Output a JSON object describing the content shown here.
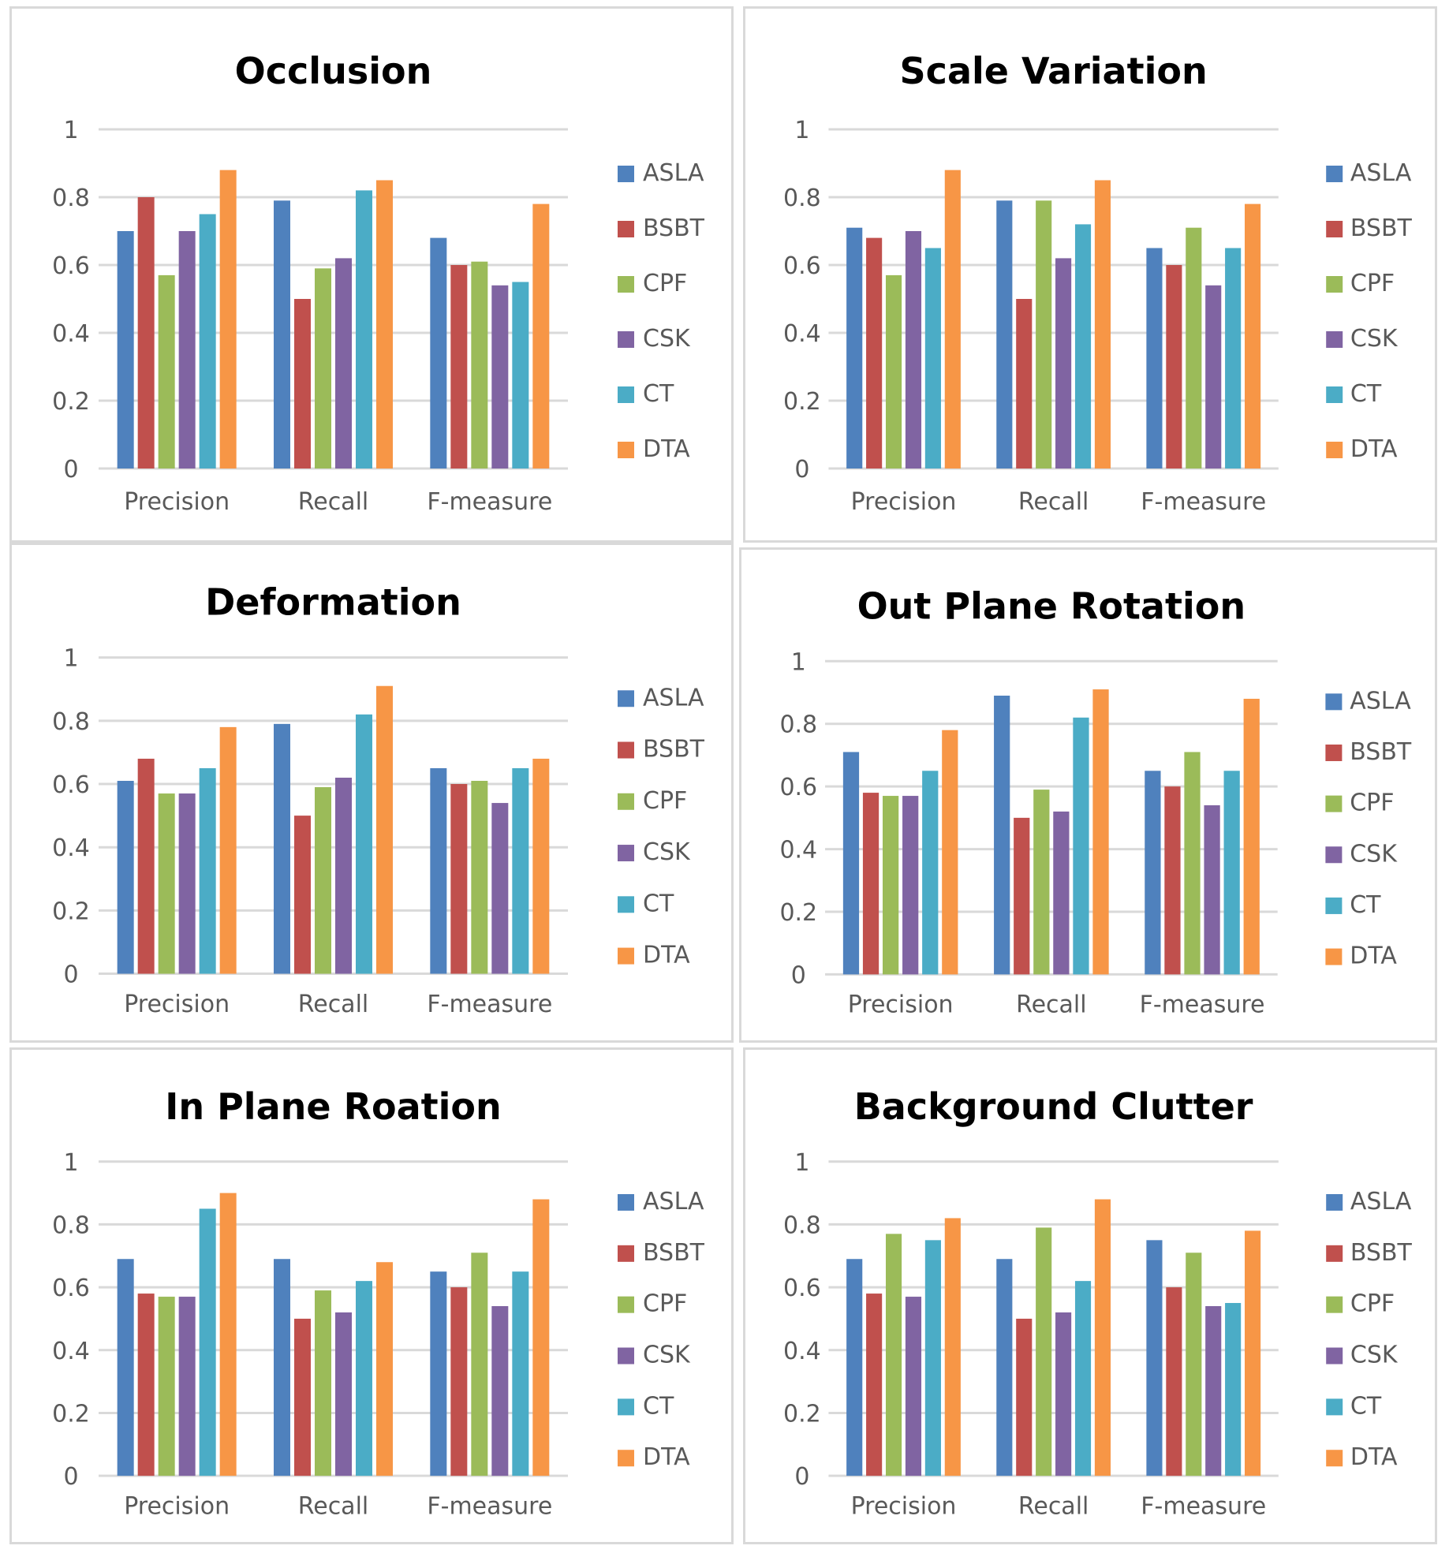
{
  "chart_data": [
    {
      "type": "bar",
      "title": "Occlusion",
      "categories": [
        "Precision",
        "Recall",
        "F-measure"
      ],
      "ylim": [
        0,
        1
      ],
      "yticks": [
        "0",
        "0.2",
        "0.4",
        "0.6",
        "0.8",
        "1"
      ],
      "grid": true,
      "legend": "right",
      "series": [
        {
          "name": "ASLA",
          "color": "#4f81bd",
          "values": [
            0.7,
            0.79,
            0.68
          ]
        },
        {
          "name": "BSBT",
          "color": "#c0504d",
          "values": [
            0.8,
            0.5,
            0.6
          ]
        },
        {
          "name": "CPF",
          "color": "#9bbb59",
          "values": [
            0.57,
            0.59,
            0.61
          ]
        },
        {
          "name": "CSK",
          "color": "#8064a2",
          "values": [
            0.7,
            0.62,
            0.54
          ]
        },
        {
          "name": "CT",
          "color": "#4bacc6",
          "values": [
            0.75,
            0.82,
            0.55
          ]
        },
        {
          "name": "DTA",
          "color": "#f79646",
          "values": [
            0.88,
            0.85,
            0.78
          ]
        }
      ]
    },
    {
      "type": "bar",
      "title": "Scale Variation",
      "categories": [
        "Precision",
        "Recall",
        "F-measure"
      ],
      "ylim": [
        0,
        1
      ],
      "yticks": [
        "0",
        "0.2",
        "0.4",
        "0.6",
        "0.8",
        "1"
      ],
      "grid": true,
      "legend": "right",
      "series": [
        {
          "name": "ASLA",
          "color": "#4f81bd",
          "values": [
            0.71,
            0.79,
            0.65
          ]
        },
        {
          "name": "BSBT",
          "color": "#c0504d",
          "values": [
            0.68,
            0.5,
            0.6
          ]
        },
        {
          "name": "CPF",
          "color": "#9bbb59",
          "values": [
            0.57,
            0.79,
            0.71
          ]
        },
        {
          "name": "CSK",
          "color": "#8064a2",
          "values": [
            0.7,
            0.62,
            0.54
          ]
        },
        {
          "name": "CT",
          "color": "#4bacc6",
          "values": [
            0.65,
            0.72,
            0.65
          ]
        },
        {
          "name": "DTA",
          "color": "#f79646",
          "values": [
            0.88,
            0.85,
            0.78
          ]
        }
      ]
    },
    {
      "type": "bar",
      "title": "Deformation",
      "categories": [
        "Precision",
        "Recall",
        "F-measure"
      ],
      "ylim": [
        0,
        1
      ],
      "yticks": [
        "0",
        "0.2",
        "0.4",
        "0.6",
        "0.8",
        "1"
      ],
      "grid": true,
      "legend": "right",
      "series": [
        {
          "name": "ASLA",
          "color": "#4f81bd",
          "values": [
            0.61,
            0.79,
            0.65
          ]
        },
        {
          "name": "BSBT",
          "color": "#c0504d",
          "values": [
            0.68,
            0.5,
            0.6
          ]
        },
        {
          "name": "CPF",
          "color": "#9bbb59",
          "values": [
            0.57,
            0.59,
            0.61
          ]
        },
        {
          "name": "CSK",
          "color": "#8064a2",
          "values": [
            0.57,
            0.62,
            0.54
          ]
        },
        {
          "name": "CT",
          "color": "#4bacc6",
          "values": [
            0.65,
            0.82,
            0.65
          ]
        },
        {
          "name": "DTA",
          "color": "#f79646",
          "values": [
            0.78,
            0.91,
            0.68
          ]
        }
      ]
    },
    {
      "type": "bar",
      "title": "Out Plane Rotation",
      "categories": [
        "Precision",
        "Recall",
        "F-measure"
      ],
      "ylim": [
        0,
        1
      ],
      "yticks": [
        "0",
        "0.2",
        "0.4",
        "0.6",
        "0.8",
        "1"
      ],
      "grid": true,
      "legend": "right",
      "series": [
        {
          "name": "ASLA",
          "color": "#4f81bd",
          "values": [
            0.71,
            0.89,
            0.65
          ]
        },
        {
          "name": "BSBT",
          "color": "#c0504d",
          "values": [
            0.58,
            0.5,
            0.6
          ]
        },
        {
          "name": "CPF",
          "color": "#9bbb59",
          "values": [
            0.57,
            0.59,
            0.71
          ]
        },
        {
          "name": "CSK",
          "color": "#8064a2",
          "values": [
            0.57,
            0.52,
            0.54
          ]
        },
        {
          "name": "CT",
          "color": "#4bacc6",
          "values": [
            0.65,
            0.82,
            0.65
          ]
        },
        {
          "name": "DTA",
          "color": "#f79646",
          "values": [
            0.78,
            0.91,
            0.88
          ]
        }
      ]
    },
    {
      "type": "bar",
      "title": "In Plane Roation",
      "categories": [
        "Precision",
        "Recall",
        "F-measure"
      ],
      "ylim": [
        0,
        1
      ],
      "yticks": [
        "0",
        "0.2",
        "0.4",
        "0.6",
        "0.8",
        "1"
      ],
      "grid": true,
      "legend": "right",
      "series": [
        {
          "name": "ASLA",
          "color": "#4f81bd",
          "values": [
            0.69,
            0.69,
            0.65
          ]
        },
        {
          "name": "BSBT",
          "color": "#c0504d",
          "values": [
            0.58,
            0.5,
            0.6
          ]
        },
        {
          "name": "CPF",
          "color": "#9bbb59",
          "values": [
            0.57,
            0.59,
            0.71
          ]
        },
        {
          "name": "CSK",
          "color": "#8064a2",
          "values": [
            0.57,
            0.52,
            0.54
          ]
        },
        {
          "name": "CT",
          "color": "#4bacc6",
          "values": [
            0.85,
            0.62,
            0.65
          ]
        },
        {
          "name": "DTA",
          "color": "#f79646",
          "values": [
            0.9,
            0.68,
            0.88
          ]
        }
      ]
    },
    {
      "type": "bar",
      "title": "Background Clutter",
      "categories": [
        "Precision",
        "Recall",
        "F-measure"
      ],
      "ylim": [
        0,
        1
      ],
      "yticks": [
        "0",
        "0.2",
        "0.4",
        "0.6",
        "0.8",
        "1"
      ],
      "grid": true,
      "legend": "right",
      "series": [
        {
          "name": "ASLA",
          "color": "#4f81bd",
          "values": [
            0.69,
            0.69,
            0.75
          ]
        },
        {
          "name": "BSBT",
          "color": "#c0504d",
          "values": [
            0.58,
            0.5,
            0.6
          ]
        },
        {
          "name": "CPF",
          "color": "#9bbb59",
          "values": [
            0.77,
            0.79,
            0.71
          ]
        },
        {
          "name": "CSK",
          "color": "#8064a2",
          "values": [
            0.57,
            0.52,
            0.54
          ]
        },
        {
          "name": "CT",
          "color": "#4bacc6",
          "values": [
            0.75,
            0.62,
            0.55
          ]
        },
        {
          "name": "DTA",
          "color": "#f79646",
          "values": [
            0.82,
            0.88,
            0.78
          ]
        }
      ]
    }
  ]
}
